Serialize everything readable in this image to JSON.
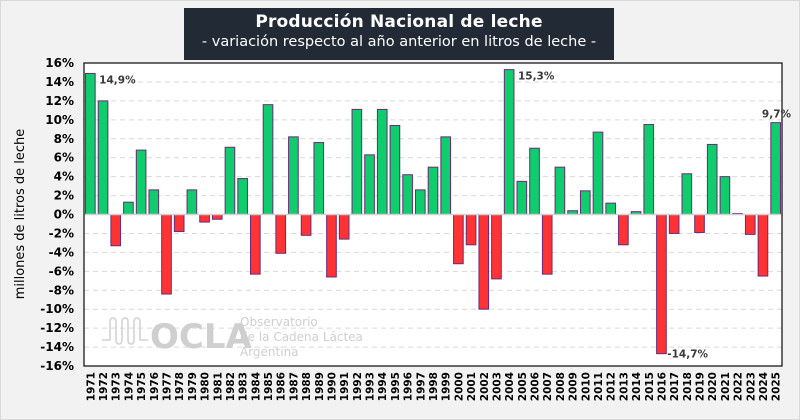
{
  "header": {
    "title": "Producción  Nacional  de leche",
    "subtitle": "- variación respecto al año anterior en litros de leche -"
  },
  "watermark": {
    "logo_text": "OCLA",
    "line1": "Observatorio",
    "line2": "de la Cadena Láctea",
    "line3": "Argentina"
  },
  "colors": {
    "positive": "#0fcc6c",
    "negative": "#ff3333",
    "bar_outline": "#6b2a7a",
    "title_bg": "#222a35",
    "gridline": "#d9d9d9"
  },
  "chart_data": {
    "type": "bar",
    "title": "Producción Nacional de leche",
    "subtitle": "- variación respecto al año anterior en litros de leche -",
    "xlabel": "",
    "ylabel": "millones de litros de leche",
    "ylim": [
      -16,
      16
    ],
    "ytick_step": 2,
    "ytick_format": "percent",
    "grid": "horizontal-dashed",
    "legend": "none",
    "categories": [
      "1971",
      "1972",
      "1973",
      "1974",
      "1975",
      "1976",
      "1977",
      "1978",
      "1979",
      "1980",
      "1981",
      "1982",
      "1983",
      "1984",
      "1985",
      "1986",
      "1987",
      "1988",
      "1989",
      "1990",
      "1991",
      "1992",
      "1993",
      "1994",
      "1995",
      "1996",
      "1997",
      "1998",
      "1999",
      "2000",
      "2001",
      "2002",
      "2003",
      "2004",
      "2005",
      "2006",
      "2007",
      "2008",
      "2009",
      "2010",
      "2011",
      "2012",
      "2013",
      "2014",
      "2015",
      "2016",
      "2017",
      "2018",
      "2019",
      "2020",
      "2021",
      "2022",
      "2023",
      "2024",
      "2025"
    ],
    "values": [
      14.9,
      12.0,
      -3.3,
      1.3,
      6.8,
      2.6,
      -8.4,
      -1.8,
      2.6,
      -0.8,
      -0.5,
      7.1,
      3.8,
      -6.3,
      11.6,
      -4.1,
      8.2,
      -2.2,
      7.6,
      -6.6,
      -2.6,
      11.1,
      6.3,
      11.1,
      9.4,
      4.2,
      2.6,
      5.0,
      8.2,
      -5.2,
      -3.2,
      -10.0,
      -6.8,
      15.3,
      3.5,
      7.0,
      -6.3,
      5.0,
      0.4,
      2.5,
      8.7,
      1.2,
      -3.2,
      0.3,
      9.5,
      -14.7,
      -2.0,
      4.3,
      -1.9,
      7.4,
      4.0,
      0.1,
      -2.1,
      -6.5,
      9.7
    ],
    "annotations": [
      {
        "category": "1971",
        "text": "14,9%"
      },
      {
        "category": "2004",
        "text": "15,3%"
      },
      {
        "category": "2016",
        "text": "-14,7%"
      },
      {
        "category": "2025",
        "text": "9,7%"
      }
    ]
  }
}
